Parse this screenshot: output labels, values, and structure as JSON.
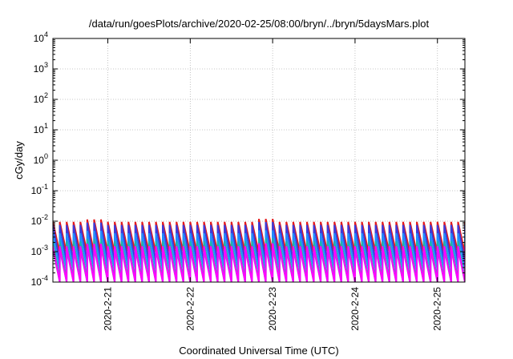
{
  "chart_data": {
    "type": "line",
    "title": "/data/run/goesPlots/archive/2020-02-25/08:00/bryn/../bryn/5daysMars.plot",
    "xlabel": "Coordinated Universal Time (UTC)",
    "ylabel": "cGy/day",
    "yscale": "log",
    "ylim": [
      0.0001,
      10000
    ],
    "y_ticks": [
      {
        "value": 0.0001,
        "base": "10",
        "exp": "-4"
      },
      {
        "value": 0.001,
        "base": "10",
        "exp": "-3"
      },
      {
        "value": 0.01,
        "base": "10",
        "exp": "-2"
      },
      {
        "value": 0.1,
        "base": "10",
        "exp": "-1"
      },
      {
        "value": 1,
        "base": "10",
        "exp": "0"
      },
      {
        "value": 10,
        "base": "10",
        "exp": "1"
      },
      {
        "value": 100,
        "base": "10",
        "exp": "2"
      },
      {
        "value": 1000,
        "base": "10",
        "exp": "3"
      },
      {
        "value": 10000,
        "base": "10",
        "exp": "4"
      }
    ],
    "xlim": [
      "2020-02-20T08:00",
      "2020-02-25T08:00"
    ],
    "x_ticks": [
      {
        "value": "2020-02-21T00:00",
        "label": "2020-2-21"
      },
      {
        "value": "2020-02-22T00:00",
        "label": "2020-2-22"
      },
      {
        "value": "2020-02-23T00:00",
        "label": "2020-2-23"
      },
      {
        "value": "2020-02-24T00:00",
        "label": "2020-2-24"
      },
      {
        "value": "2020-02-25T00:00",
        "label": "2020-2-25"
      }
    ],
    "grid": true,
    "legend": "none",
    "sawtooth": {
      "period_hours": 2,
      "phase_start": "2020-02-20T08:00",
      "peak_boost": [
        {
          "time": "2020-02-20T20:00",
          "factor": 1.2
        },
        {
          "time": "2020-02-22T22:00",
          "factor": 1.25
        }
      ]
    },
    "series": [
      {
        "color": "#e41a1c",
        "peak": 0.0095,
        "trough": 0.0009
      },
      {
        "color": "#3b3bd9",
        "peak": 0.0075,
        "trough": 0.00045
      },
      {
        "color": "#1e90ff",
        "peak": 0.004,
        "trough": 0.00025
      },
      {
        "color": "#20b2aa",
        "peak": 0.0022,
        "trough": 0.00012
      },
      {
        "color": "#7d7db8",
        "peak": 0.0012,
        "trough": 0.0001
      },
      {
        "color": "#ff00ff",
        "peak": 0.0015,
        "trough": 0.0001
      }
    ]
  }
}
